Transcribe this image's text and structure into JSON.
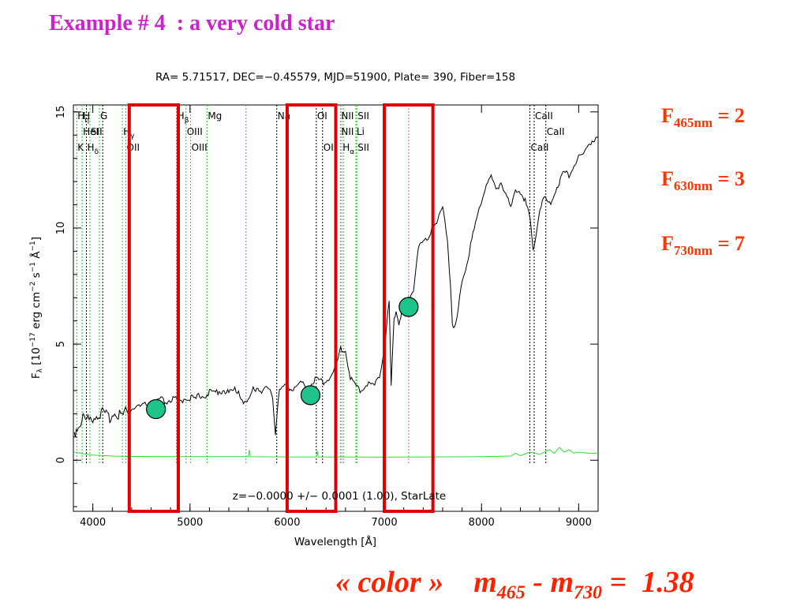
{
  "slide": {
    "title": "Example # 4  : a very cold star"
  },
  "fluxes": [
    {
      "symbol": "F",
      "band": "465nm",
      "rest": " = 2"
    },
    {
      "symbol": "F",
      "band": "630nm",
      "rest": " = 3"
    },
    {
      "symbol": "F",
      "band": "730nm",
      "rest": " = 7"
    }
  ],
  "formula": {
    "color_word": "« color »",
    "m1": "m",
    "sub1": "465",
    "minus": " - ",
    "m2": "m",
    "sub2": "730",
    "equals": " =  1.38"
  },
  "colors": {
    "title": "#cc22cc",
    "accent": "#ff3300",
    "box": "#dd0000",
    "marker": "#1ec48a",
    "emission_line": "#22cc22",
    "error_spectrum": "#33dd33",
    "em_line_magenta": "#dd44dd"
  },
  "chart_data": {
    "type": "line",
    "header": "RA= 5.71517, DEC=−0.45579, MJD=51900, Plate= 390, Fiber=158",
    "xlabel": "Wavelength [Å]",
    "ylabel_parts": {
      "f": "F",
      "lambda": "λ",
      "a": " [10",
      "e1": "−17",
      "b": " erg cm",
      "e2": "−2",
      "c": " s",
      "e3": "−1",
      "d": " Å",
      "e4": "−1",
      "e": "]"
    },
    "footer": "z=−0.0000 +/− 0.0001 (1.00), StarLate",
    "xlim": [
      3800,
      9200
    ],
    "ylim": [
      -2.2,
      15.3
    ],
    "xticks": [
      "4000",
      "5000",
      "6000",
      "7000",
      "8000",
      "9000"
    ],
    "yticks": [
      "0",
      "5",
      "10",
      "15"
    ],
    "ytick_values": [
      0,
      5,
      10,
      15
    ],
    "xtick_values": [
      4000,
      5000,
      6000,
      7000,
      8000,
      9000
    ],
    "series": [
      {
        "role": "spectrum",
        "x": [
          3810,
          3850,
          3900,
          3950,
          4000,
          4050,
          4100,
          4150,
          4200,
          4250,
          4300,
          4350,
          4400,
          4450,
          4500,
          4550,
          4600,
          4650,
          4700,
          4750,
          4800,
          4850,
          4900,
          4950,
          5000,
          5050,
          5100,
          5150,
          5200,
          5250,
          5300,
          5350,
          5400,
          5450,
          5500,
          5550,
          5600,
          5650,
          5700,
          5750,
          5800,
          5850,
          5880,
          5900,
          5920,
          5950,
          6000,
          6050,
          6100,
          6150,
          6200,
          6250,
          6300,
          6350,
          6400,
          6450,
          6500,
          6550,
          6600,
          6650,
          6700,
          6750,
          6800,
          6850,
          6900,
          6950,
          7000,
          7050,
          7070,
          7100,
          7120,
          7150,
          7180,
          7200,
          7250,
          7300,
          7350,
          7400,
          7450,
          7500,
          7550,
          7600,
          7650,
          7680,
          7700,
          7720,
          7750,
          7800,
          7850,
          7900,
          7950,
          8000,
          8050,
          8100,
          8150,
          8200,
          8250,
          8300,
          8350,
          8400,
          8450,
          8500,
          8530,
          8550,
          8600,
          8650,
          8700,
          8750,
          8800,
          8850,
          8900,
          8950,
          9000,
          9050,
          9100,
          9150,
          9200
        ],
        "y": [
          1.2,
          1.5,
          1.8,
          1.7,
          1.9,
          2.0,
          2.0,
          1.8,
          2.0,
          2.1,
          1.9,
          2.1,
          2.2,
          2.3,
          2.3,
          2.4,
          2.3,
          2.5,
          2.6,
          2.5,
          2.6,
          2.6,
          2.5,
          2.7,
          2.7,
          2.6,
          2.8,
          2.8,
          2.9,
          2.9,
          3.0,
          3.0,
          2.9,
          3.0,
          3.0,
          2.5,
          2.5,
          3.1,
          3.1,
          3.0,
          3.1,
          2.7,
          1.2,
          2.3,
          3.0,
          3.1,
          3.2,
          3.1,
          3.2,
          3.3,
          3.1,
          3.3,
          3.5,
          3.4,
          3.4,
          3.7,
          3.9,
          4.8,
          4.7,
          3.6,
          3.2,
          3.0,
          3.2,
          3.3,
          3.2,
          3.7,
          4.8,
          6.8,
          3.2,
          6.0,
          6.5,
          5.9,
          6.4,
          6.6,
          6.9,
          7.4,
          9.2,
          9.4,
          9.5,
          10.2,
          10.3,
          10.9,
          9.5,
          7.6,
          6.0,
          5.7,
          6.1,
          7.8,
          8.5,
          9.5,
          10.4,
          11.2,
          11.9,
          12.2,
          11.6,
          12.0,
          11.5,
          10.8,
          11.7,
          11.6,
          11.2,
          10.3,
          9.1,
          9.5,
          10.8,
          11.3,
          11.0,
          11.5,
          12.0,
          12.4,
          12.3,
          12.7,
          13.0,
          13.2,
          13.6,
          13.8,
          13.9
        ]
      },
      {
        "role": "error",
        "x": [
          3810,
          3900,
          4000,
          4200,
          4400,
          5000,
          5500,
          5600,
          5610,
          5620,
          6000,
          6300,
          6310,
          6320,
          6500,
          7000,
          7500,
          8000,
          8300,
          8350,
          8400,
          8500,
          8600,
          8700,
          8750,
          8800,
          8850,
          8900,
          8950,
          9000,
          9100,
          9200
        ],
        "y": [
          0.35,
          0.28,
          0.22,
          0.18,
          0.16,
          0.15,
          0.15,
          0.15,
          0.45,
          0.15,
          0.14,
          0.14,
          0.4,
          0.14,
          0.14,
          0.13,
          0.14,
          0.15,
          0.18,
          0.3,
          0.2,
          0.35,
          0.25,
          0.45,
          0.3,
          0.55,
          0.35,
          0.45,
          0.3,
          0.35,
          0.3,
          0.3
        ]
      }
    ],
    "line_markers": [
      {
        "x": 3835,
        "style": "green",
        "labels": [
          {
            "t": "H",
            "s": "η",
            "r": 0
          },
          {
            "t": "K",
            "r": 2
          }
        ]
      },
      {
        "x": 3890,
        "style": "green",
        "labels": [
          {
            "t": "H",
            "r": 0
          },
          {
            "t": "HeI",
            "r": 1
          }
        ]
      },
      {
        "x": 3934,
        "style": "black",
        "labels": [
          {
            "t": "H",
            "s": "δ",
            "r": 2
          }
        ]
      },
      {
        "x": 3970,
        "style": "green",
        "labels": [
          {
            "t": "SII",
            "r": 1
          }
        ]
      },
      {
        "x": 4068,
        "style": "green",
        "labels": [
          {
            "t": "G",
            "r": 0
          }
        ]
      },
      {
        "x": 4102,
        "style": "black",
        "labels": []
      },
      {
        "x": 4304,
        "style": "green",
        "labels": [
          {
            "t": "H",
            "s": "γ",
            "r": 1
          }
        ]
      },
      {
        "x": 4340,
        "style": "green",
        "labels": [
          {
            "t": "OII",
            "r": 2
          }
        ]
      },
      {
        "x": 4861,
        "style": "green",
        "labels": [
          {
            "t": "H",
            "s": "β",
            "r": 0
          }
        ]
      },
      {
        "x": 4959,
        "style": "green",
        "labels": [
          {
            "t": "OIII",
            "r": 1
          }
        ]
      },
      {
        "x": 5007,
        "style": "green",
        "labels": [
          {
            "t": "OIII",
            "r": 2
          }
        ]
      },
      {
        "x": 5175,
        "style": "green",
        "labels": [
          {
            "t": "Mg",
            "r": 0
          }
        ]
      },
      {
        "x": 5577,
        "style": "magenta",
        "labels": []
      },
      {
        "x": 5893,
        "style": "black",
        "labels": [
          {
            "t": "Na",
            "r": 0
          }
        ]
      },
      {
        "x": 6300,
        "style": "black",
        "labels": [
          {
            "t": "OI",
            "r": 0
          }
        ]
      },
      {
        "x": 6364,
        "style": "black",
        "labels": [
          {
            "t": "OI",
            "r": 2
          }
        ]
      },
      {
        "x": 6548,
        "style": "green",
        "labels": [
          {
            "t": "NII",
            "r": 0
          },
          {
            "t": "NII",
            "r": 1
          }
        ]
      },
      {
        "x": 6563,
        "style": "green",
        "labels": [
          {
            "t": "H",
            "s": "α",
            "r": 2
          }
        ]
      },
      {
        "x": 6583,
        "style": "green",
        "labels": []
      },
      {
        "x": 6707,
        "style": "green",
        "labels": [
          {
            "t": "Li",
            "r": 1
          }
        ]
      },
      {
        "x": 6717,
        "style": "green",
        "labels": [
          {
            "t": "SII",
            "r": 0
          },
          {
            "t": "SII",
            "r": 2
          }
        ]
      },
      {
        "x": 7250,
        "style": "magenta",
        "labels": []
      },
      {
        "x": 8498,
        "style": "black",
        "labels": [
          {
            "t": "CaII",
            "r": 2
          }
        ]
      },
      {
        "x": 8542,
        "style": "black",
        "labels": [
          {
            "t": "CaII",
            "r": 0
          }
        ]
      },
      {
        "x": 8662,
        "style": "black",
        "labels": [
          {
            "t": "CaII",
            "r": 1
          }
        ]
      }
    ],
    "bands": [
      {
        "x0": 4375,
        "x1": 4880,
        "y0": -2.2,
        "y1": 15.3
      },
      {
        "x0": 6000,
        "x1": 6500,
        "y0": -2.2,
        "y1": 15.3
      },
      {
        "x0": 7000,
        "x1": 7500,
        "y0": -2.2,
        "y1": 15.3
      }
    ],
    "points": [
      {
        "x": 4650,
        "y": 2.2
      },
      {
        "x": 6240,
        "y": 2.8
      },
      {
        "x": 7250,
        "y": 6.6
      }
    ],
    "grid": false,
    "legend": "none"
  }
}
